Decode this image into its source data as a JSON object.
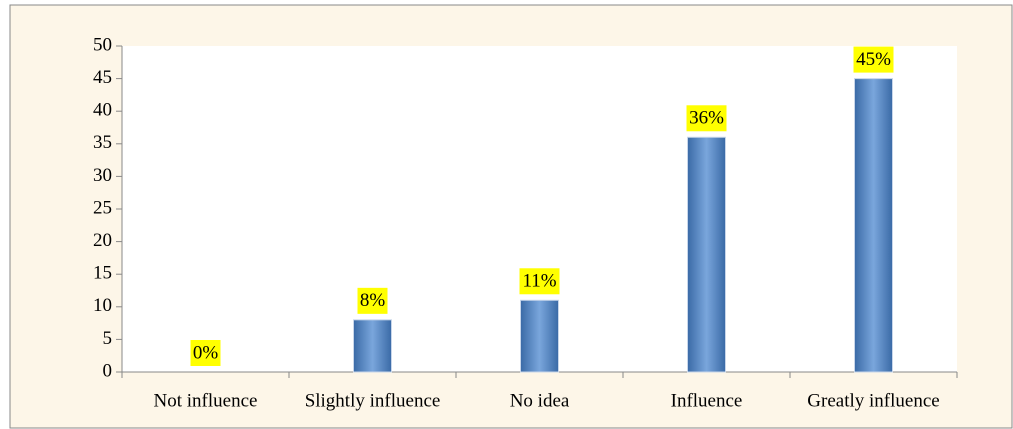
{
  "chart_data": {
    "type": "bar",
    "categories": [
      "Not influence",
      "Slightly influence",
      "No idea",
      "Influence",
      "Greatly influence"
    ],
    "values": [
      0,
      8,
      11,
      36,
      45
    ],
    "value_labels": [
      "0%",
      "8%",
      "11%",
      "36%",
      "45%"
    ],
    "color": "#4f81bd",
    "ylim": [
      0,
      50
    ],
    "yticks": [
      0,
      5,
      10,
      15,
      20,
      25,
      30,
      35,
      40,
      45,
      50
    ]
  }
}
